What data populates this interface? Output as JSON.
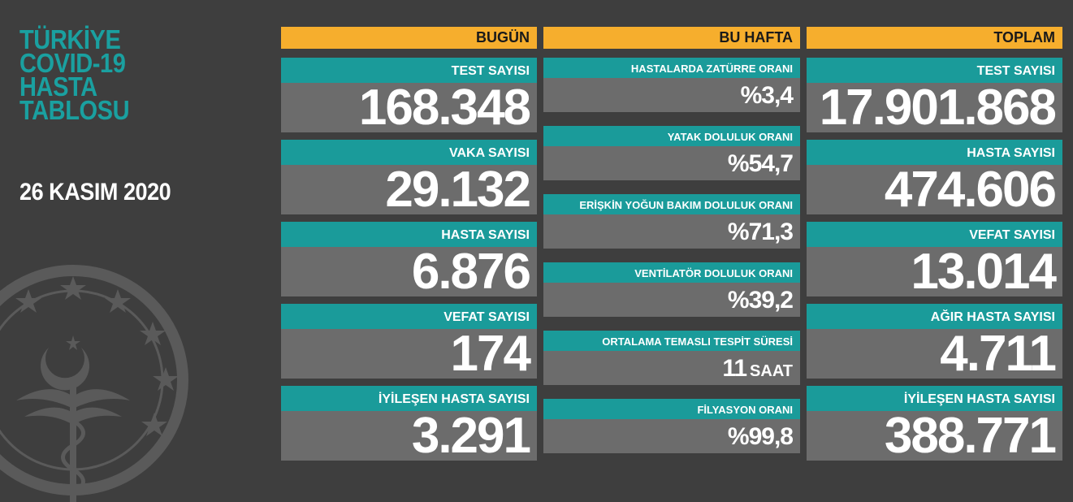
{
  "title": [
    "TÜRKİYE",
    "COVID-19",
    "HASTA",
    "TABLOSU"
  ],
  "date": "26 KASIM 2020",
  "columns": {
    "today": {
      "header": "BUGÜN",
      "items": [
        {
          "label": "TEST SAYISI",
          "value": "168.348"
        },
        {
          "label": "VAKA SAYISI",
          "value": "29.132"
        },
        {
          "label": "HASTA SAYISI",
          "value": "6.876"
        },
        {
          "label": "VEFAT SAYISI",
          "value": "174"
        },
        {
          "label": "İYİLEŞEN HASTA SAYISI",
          "value": "3.291"
        }
      ]
    },
    "week": {
      "header": "BU HAFTA",
      "items": [
        {
          "label": "HASTALARDA ZATÜRRE ORANI",
          "value": "%3,4"
        },
        {
          "label": "YATAK DOLULUK ORANI",
          "value": "%54,7"
        },
        {
          "label": "ERİŞKİN YOĞUN BAKIM DOLULUK ORANI",
          "value": "%71,3"
        },
        {
          "label": "VENTİLATÖR DOLULUK ORANI",
          "value": "%39,2"
        },
        {
          "label": "ORTALAMA TEMASLI TESPİT SÜRESİ",
          "value": "11",
          "unit": "SAAT"
        },
        {
          "label": "FİLYASYON ORANI",
          "value": "%99,8"
        }
      ]
    },
    "total": {
      "header": "TOPLAM",
      "items": [
        {
          "label": "TEST SAYISI",
          "value": "17.901.868"
        },
        {
          "label": "HASTA SAYISI",
          "value": "474.606"
        },
        {
          "label": "VEFAT SAYISI",
          "value": "13.014"
        },
        {
          "label": "AĞIR HASTA SAYISI",
          "value": "4.711"
        },
        {
          "label": "İYİLEŞEN HASTA SAYISI",
          "value": "388.771"
        }
      ]
    }
  },
  "colors": {
    "background": "#3e3e3e",
    "header_orange": "#f6ae2d",
    "label_teal": "#1a9b9a",
    "value_gray": "#6c6c6c",
    "title_teal": "#1aa0a0"
  },
  "icons": [
    "ministry-emblem-icon"
  ]
}
